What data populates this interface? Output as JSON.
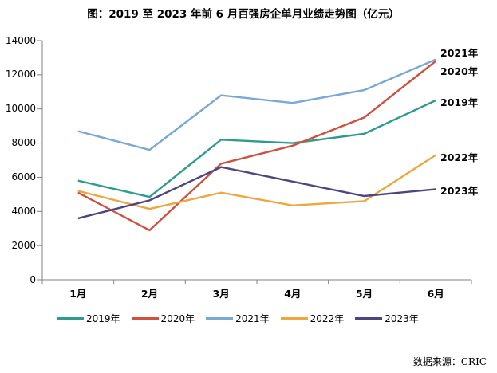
{
  "chart_data": {
    "type": "line",
    "title": "图：2019 至 2023 年前 6 月百强房企单月业绩走势图（亿元）",
    "categories": [
      "1月",
      "2月",
      "3月",
      "4月",
      "5月",
      "6月"
    ],
    "series": [
      {
        "name": "2019年",
        "color": "#2E9B8D",
        "values": [
          5800,
          4850,
          8200,
          8000,
          8550,
          10500
        ]
      },
      {
        "name": "2020年",
        "color": "#D0503F",
        "values": [
          5100,
          2900,
          6800,
          7850,
          9500,
          12800
        ]
      },
      {
        "name": "2021年",
        "color": "#78A8D6",
        "values": [
          8700,
          7600,
          10800,
          10350,
          11100,
          12900
        ]
      },
      {
        "name": "2022年",
        "color": "#ECA83F",
        "values": [
          5200,
          4150,
          5100,
          4350,
          4600,
          7300
        ]
      },
      {
        "name": "2023年",
        "color": "#4F4482",
        "values": [
          3600,
          4650,
          6600,
          5750,
          4900,
          5300
        ]
      }
    ],
    "ylim": [
      0,
      14000
    ],
    "ytick_step": 2000,
    "grid": false,
    "legend_position": "bottom",
    "axis_color": "#808080",
    "end_labels_shown": true
  },
  "source": "数据来源：CRIC"
}
